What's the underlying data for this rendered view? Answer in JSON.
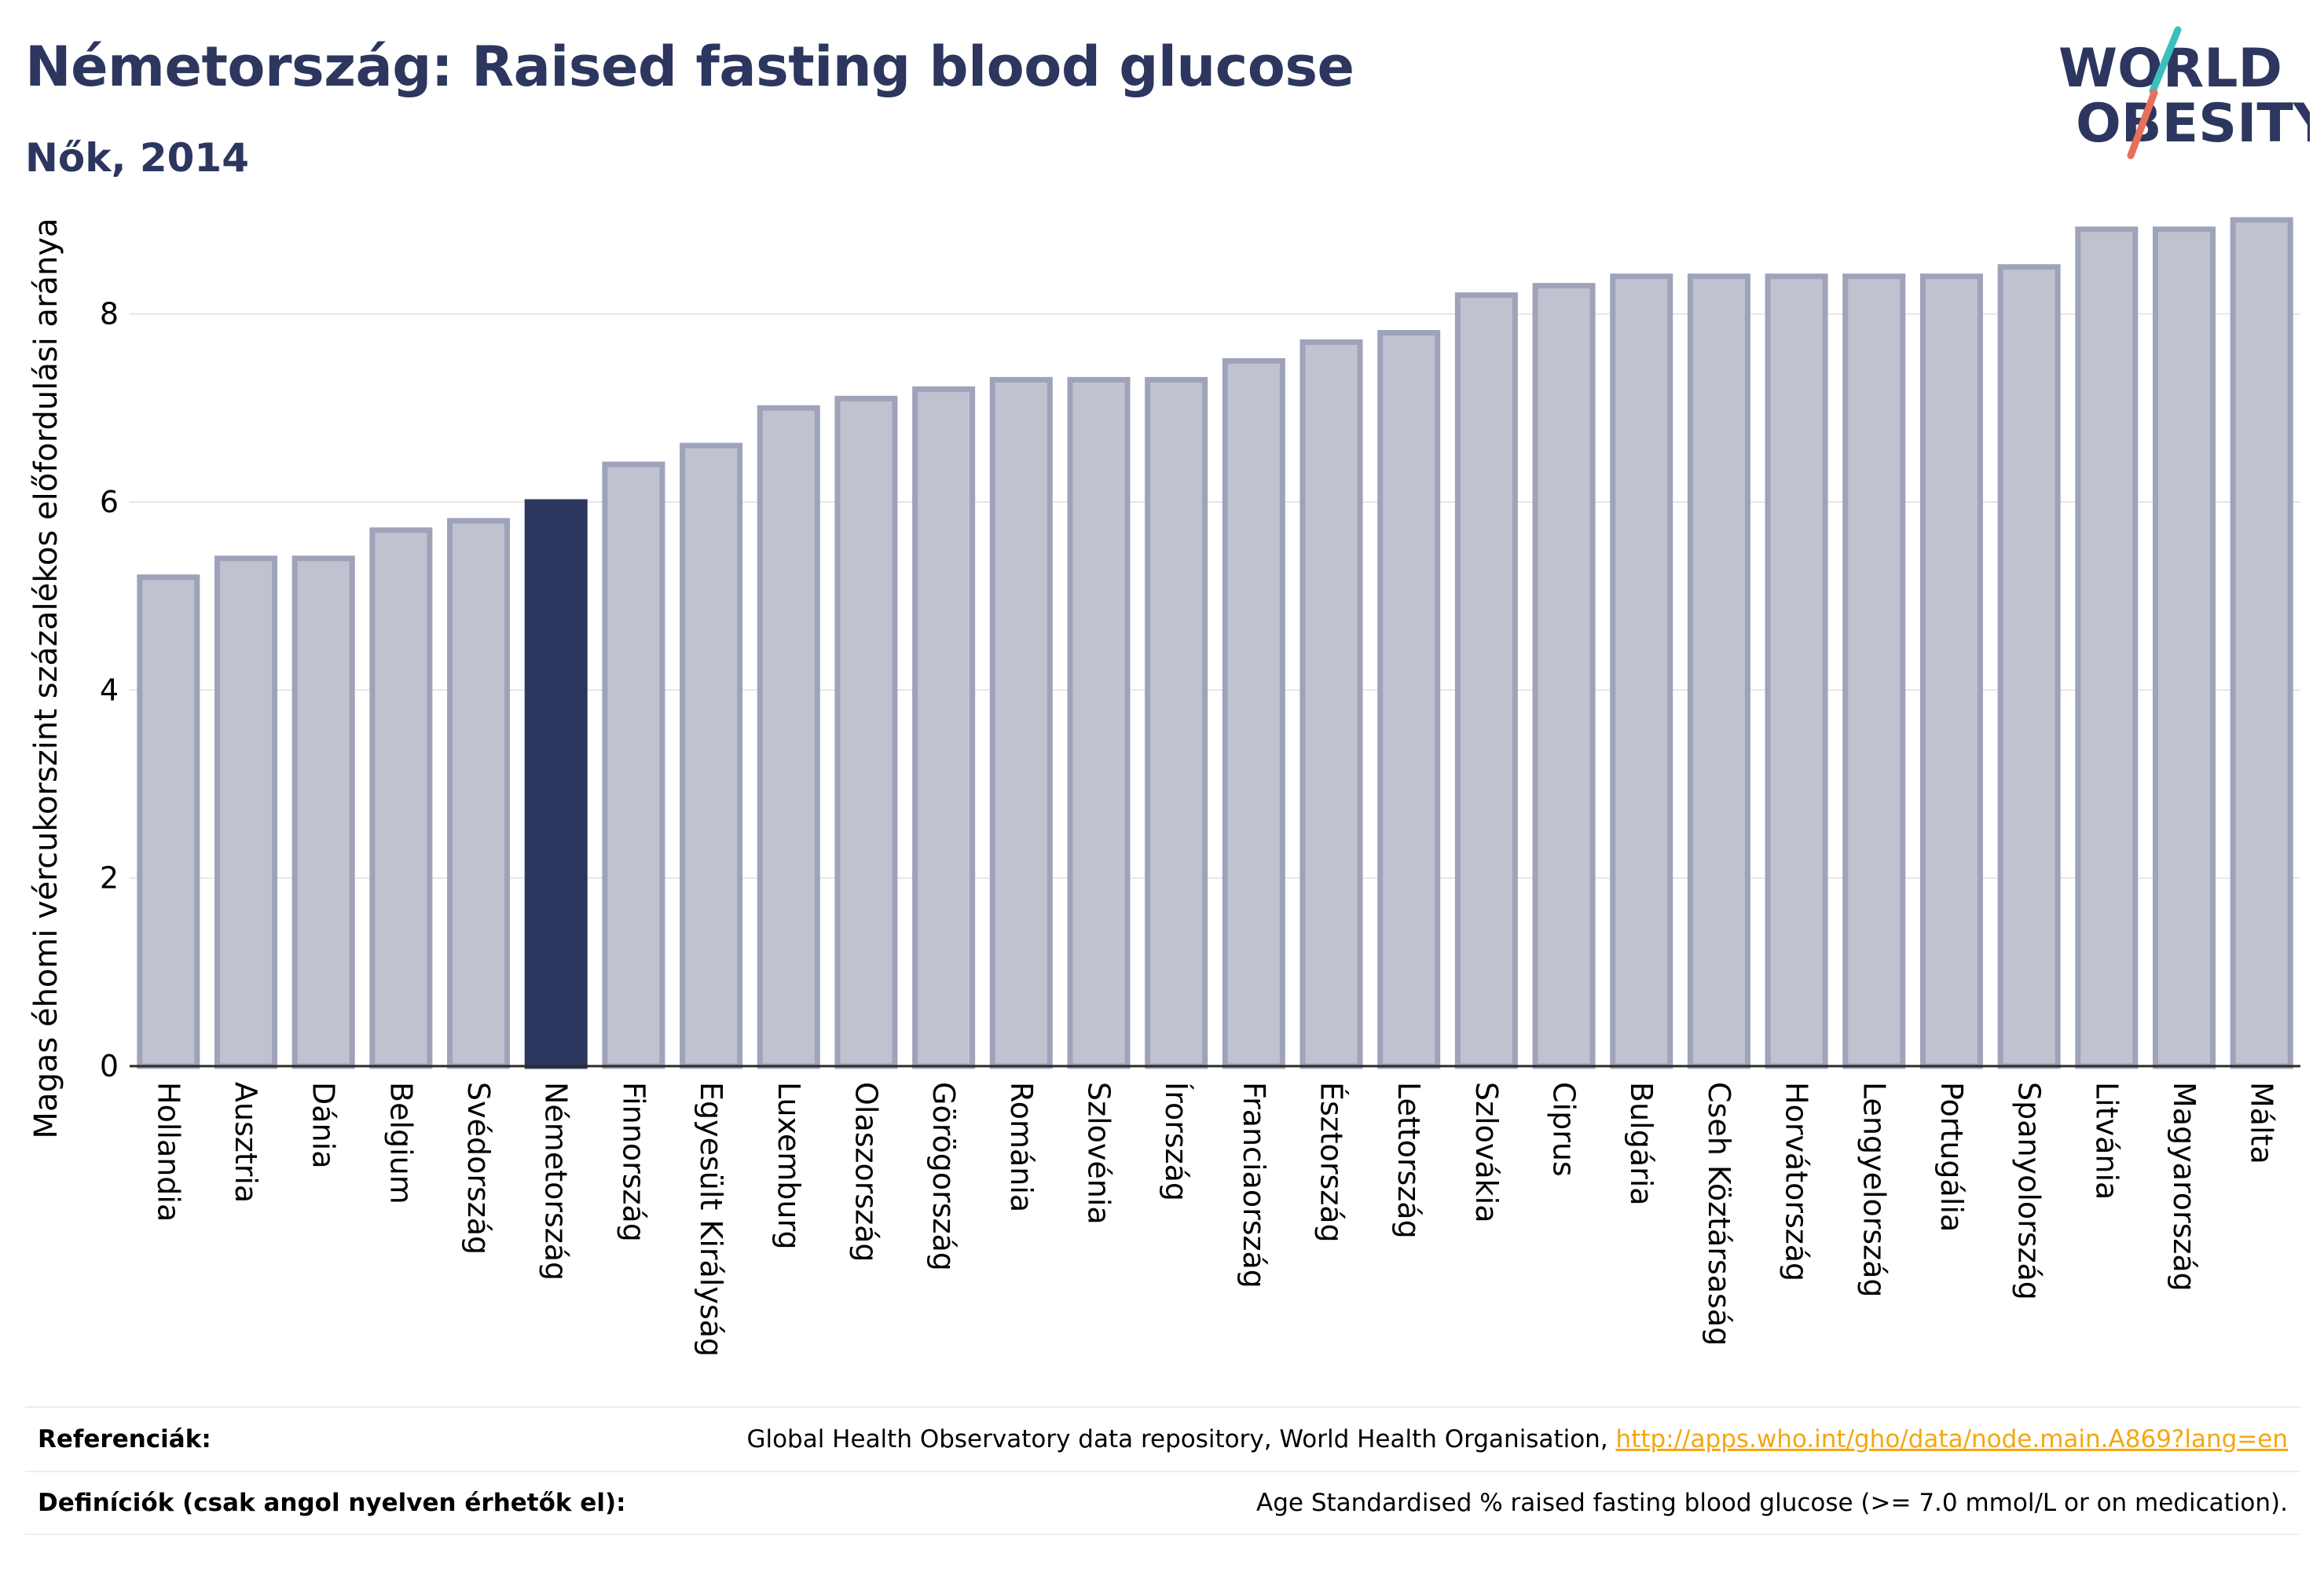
{
  "header": {
    "title": "Németország: Raised fasting blood glucose",
    "subtitle": "Nők, 2014"
  },
  "logo": {
    "line1": "WORLD",
    "line2": "OBESITY"
  },
  "colors": {
    "highlight": "#2c365e",
    "bar_fill": "#c0c3cf",
    "bar_stroke": "#9ea3b9",
    "accent_teal": "#3cbfbf",
    "accent_coral": "#e8705a",
    "link": "#f3a712"
  },
  "chart_data": {
    "type": "bar",
    "title": "Németország: Raised fasting blood glucose",
    "subtitle": "Nők, 2014",
    "ylabel": "Magas éhomi vércukorszint százalékos előfordulási aránya",
    "xlabel": "",
    "ylim": [
      0,
      9.25
    ],
    "yticks": [
      0,
      2,
      4,
      6,
      8
    ],
    "grid": true,
    "highlight_category": "Németország",
    "categories": [
      "Hollandia",
      "Ausztria",
      "Dánia",
      "Belgium",
      "Svédország",
      "Németország",
      "Finnország",
      "Egyesült Királyság",
      "Luxemburg",
      "Olaszország",
      "Görögország",
      "Románia",
      "Szlovénia",
      "Írország",
      "Franciaország",
      "Észtország",
      "Lettország",
      "Szlovákia",
      "Ciprus",
      "Bulgária",
      "Cseh Köztársaság",
      "Horvátország",
      "Lengyelország",
      "Portugália",
      "Spanyolország",
      "Litvánia",
      "Magyarország",
      "Málta"
    ],
    "values": [
      5.2,
      5.4,
      5.4,
      5.7,
      5.8,
      6.0,
      6.4,
      6.6,
      7.0,
      7.1,
      7.2,
      7.3,
      7.3,
      7.3,
      7.5,
      7.7,
      7.8,
      8.2,
      8.3,
      8.4,
      8.4,
      8.4,
      8.4,
      8.4,
      8.5,
      8.9,
      8.9,
      9.0
    ]
  },
  "references": {
    "ref_label": "Referenciák:",
    "ref_text": "Global Health Observatory data repository, World Health Organisation, ",
    "ref_link": "http://apps.who.int/gho/data/node.main.A869?lang=en",
    "def_label": "Definíciók (csak angol nyelven érhetők el):",
    "def_text": "Age Standardised % raised fasting blood glucose (>= 7.0 mmol/L or on medication)."
  }
}
